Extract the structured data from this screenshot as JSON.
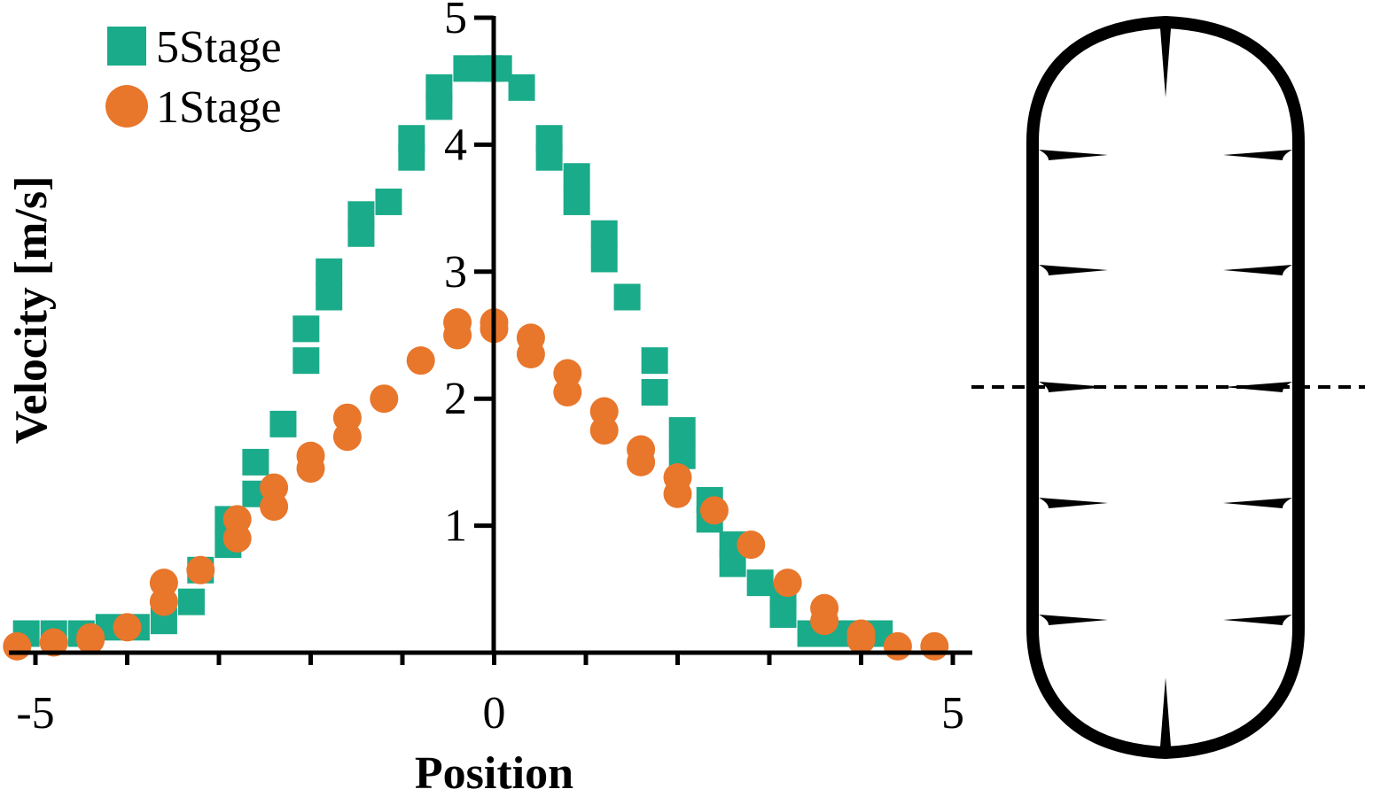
{
  "chart_data": {
    "type": "scatter",
    "xlabel": "Position",
    "ylabel": "Velocity [m/s]",
    "xlim": [
      -5.2,
      5.2
    ],
    "ylim": [
      0,
      5
    ],
    "x_tick_values": [
      -5,
      0,
      5
    ],
    "x_tick_labels": [
      "-5",
      "0",
      "5"
    ],
    "x_minor_ticks": [
      -5,
      -4,
      -3,
      -2,
      -1,
      0,
      1,
      2,
      3,
      4,
      5
    ],
    "y_tick_values": [
      1,
      2,
      3,
      4,
      5
    ],
    "y_tick_labels": [
      "1",
      "2",
      "3",
      "4",
      "5"
    ],
    "grid": false,
    "legend_position": "top-left",
    "series": [
      {
        "name": "5Stage",
        "marker": "square",
        "color": "#1aab8a",
        "points": [
          [
            -5.1,
            0.15
          ],
          [
            -4.8,
            0.15
          ],
          [
            -4.5,
            0.15
          ],
          [
            -4.2,
            0.2
          ],
          [
            -3.9,
            0.2
          ],
          [
            -3.6,
            0.25
          ],
          [
            -3.3,
            0.4
          ],
          [
            -3.2,
            0.65
          ],
          [
            -2.9,
            0.85
          ],
          [
            -2.9,
            1.05
          ],
          [
            -2.6,
            1.25
          ],
          [
            -2.6,
            1.5
          ],
          [
            -2.3,
            1.8
          ],
          [
            -2.05,
            2.3
          ],
          [
            -2.05,
            2.55
          ],
          [
            -1.8,
            2.8
          ],
          [
            -1.8,
            3.0
          ],
          [
            -1.45,
            3.3
          ],
          [
            -1.45,
            3.45
          ],
          [
            -1.15,
            3.55
          ],
          [
            -0.9,
            3.9
          ],
          [
            -0.9,
            4.05
          ],
          [
            -0.6,
            4.3
          ],
          [
            -0.6,
            4.45
          ],
          [
            -0.3,
            4.6
          ],
          [
            -0.05,
            4.6
          ],
          [
            0.05,
            4.6
          ],
          [
            0.3,
            4.45
          ],
          [
            0.6,
            3.9
          ],
          [
            0.6,
            4.05
          ],
          [
            0.9,
            3.55
          ],
          [
            0.9,
            3.75
          ],
          [
            1.2,
            3.1
          ],
          [
            1.2,
            3.3
          ],
          [
            1.45,
            2.8
          ],
          [
            1.75,
            2.05
          ],
          [
            1.75,
            2.3
          ],
          [
            2.05,
            1.55
          ],
          [
            2.05,
            1.75
          ],
          [
            2.35,
            1.2
          ],
          [
            2.35,
            1.05
          ],
          [
            2.6,
            0.7
          ],
          [
            2.6,
            0.85
          ],
          [
            2.9,
            0.55
          ],
          [
            3.15,
            0.3
          ],
          [
            3.15,
            0.45
          ],
          [
            3.45,
            0.15
          ],
          [
            3.7,
            0.15
          ],
          [
            3.9,
            0.15
          ],
          [
            4.2,
            0.15
          ]
        ]
      },
      {
        "name": "1Stage",
        "marker": "circle",
        "color": "#e8762b",
        "points": [
          [
            -5.2,
            0.05
          ],
          [
            -4.8,
            0.08
          ],
          [
            -4.4,
            0.12
          ],
          [
            -4.4,
            0.1
          ],
          [
            -4.0,
            0.2
          ],
          [
            -3.6,
            0.4
          ],
          [
            -3.6,
            0.55
          ],
          [
            -3.2,
            0.65
          ],
          [
            -2.8,
            0.9
          ],
          [
            -2.8,
            1.05
          ],
          [
            -2.4,
            1.15
          ],
          [
            -2.4,
            1.3
          ],
          [
            -2.0,
            1.45
          ],
          [
            -2.0,
            1.55
          ],
          [
            -1.6,
            1.7
          ],
          [
            -1.6,
            1.85
          ],
          [
            -1.2,
            2.0
          ],
          [
            -0.8,
            2.3
          ],
          [
            -0.4,
            2.5
          ],
          [
            -0.4,
            2.6
          ],
          [
            0.0,
            2.55
          ],
          [
            0.0,
            2.6
          ],
          [
            0.4,
            2.35
          ],
          [
            0.4,
            2.48
          ],
          [
            0.8,
            2.05
          ],
          [
            0.8,
            2.2
          ],
          [
            1.2,
            1.75
          ],
          [
            1.2,
            1.9
          ],
          [
            1.6,
            1.5
          ],
          [
            1.6,
            1.6
          ],
          [
            2.0,
            1.25
          ],
          [
            2.0,
            1.38
          ],
          [
            2.4,
            1.12
          ],
          [
            2.8,
            0.85
          ],
          [
            3.2,
            0.55
          ],
          [
            3.6,
            0.25
          ],
          [
            3.6,
            0.35
          ],
          [
            4.0,
            0.1
          ],
          [
            4.0,
            0.15
          ],
          [
            4.4,
            0.05
          ],
          [
            4.8,
            0.05
          ]
        ]
      }
    ]
  },
  "schematic": {
    "type": "capsule-outline",
    "segments": 5,
    "dashed_line": true
  }
}
